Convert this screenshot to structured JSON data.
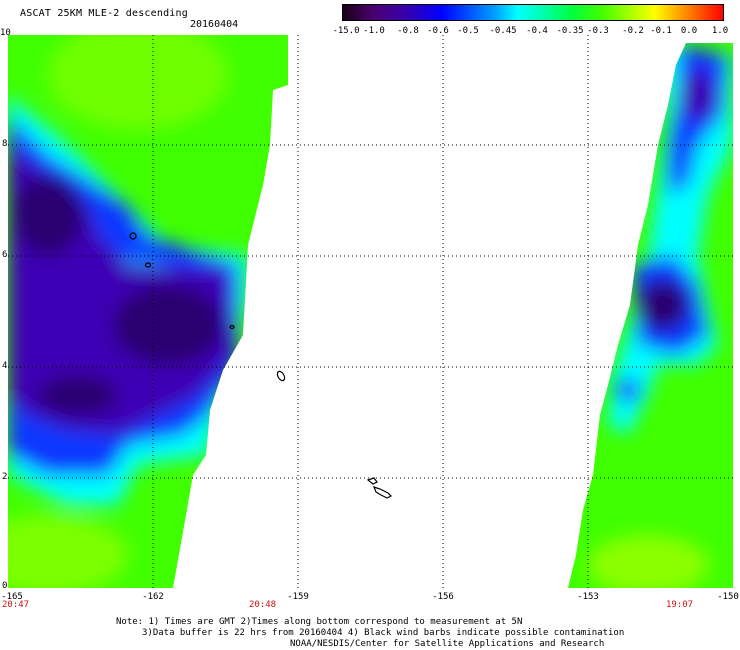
{
  "header": {
    "title": "ASCAT 25KM MLE-2 descending",
    "date": "20160404"
  },
  "colorbar": {
    "labels": [
      "-15.0",
      "-1.0",
      "-0.8",
      "-0.6",
      "-0.5",
      "-0.45",
      "-0.4",
      "-0.35",
      "-0.3",
      "-0.2",
      "-0.1",
      "0.0",
      "1.0"
    ]
  },
  "map": {
    "y_labels": [
      "10",
      "8",
      "6",
      "4",
      "2",
      "0"
    ],
    "x_labels": [
      "-165",
      "-162",
      "-159",
      "-156",
      "-153",
      "-150"
    ],
    "times": [
      "20:47",
      "20:48",
      "19:07"
    ]
  },
  "footer": {
    "line1": "Note: 1) Times are GMT 2)Times along bottom correspond to measurement at 5N",
    "line2": "3)Data buffer is 22 hrs from 20160404 4) Black wind barbs indicate possible contamination",
    "line3": "NOAA/NESDIS/Center for Satellite Applications and Research"
  },
  "colors": {
    "very_low": "#2c006a",
    "low": "#3a00c0",
    "mid_low": "#1a5cff",
    "mid": "#00ffff",
    "mid_high": "#00ff6a",
    "high": "#40ff00",
    "highest": "#9cff00"
  }
}
